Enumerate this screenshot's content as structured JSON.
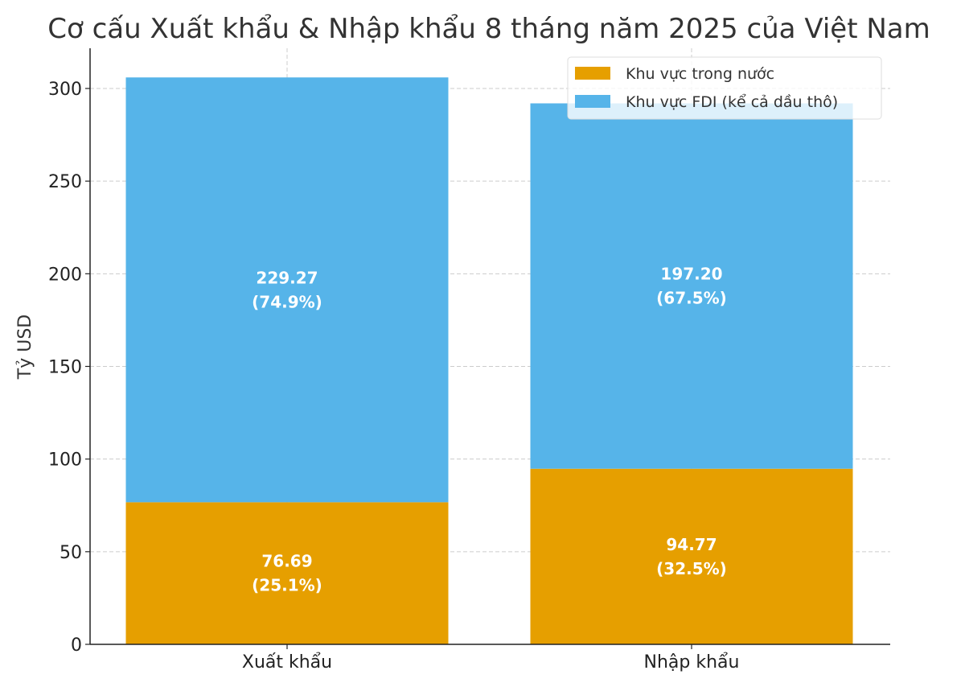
{
  "chart_data": {
    "type": "bar",
    "stacked": true,
    "title": "Cơ cấu Xuất khẩu & Nhập khẩu 8 tháng năm 2025 của Việt Nam",
    "xlabel": "",
    "ylabel": "Tỷ USD",
    "categories": [
      "Xuất khẩu",
      "Nhập khẩu"
    ],
    "series": [
      {
        "name": "Khu vực trong nước",
        "color": "#E69F00",
        "values": [
          76.69,
          94.77
        ],
        "labels": [
          "76.69\n(25.1%)",
          "94.77\n(32.5%)"
        ]
      },
      {
        "name": "Khu vực FDI (kể cả dầu thô)",
        "color": "#56B4E9",
        "values": [
          229.27,
          197.2
        ],
        "labels": [
          "229.27\n(74.9%)",
          "197.20\n(67.5%)"
        ]
      }
    ],
    "ylim": [
      0,
      321.7
    ],
    "yticks": [
      "0",
      "50",
      "100",
      "150",
      "200",
      "250",
      "300"
    ],
    "grid": true,
    "legend_position": "top-right"
  }
}
